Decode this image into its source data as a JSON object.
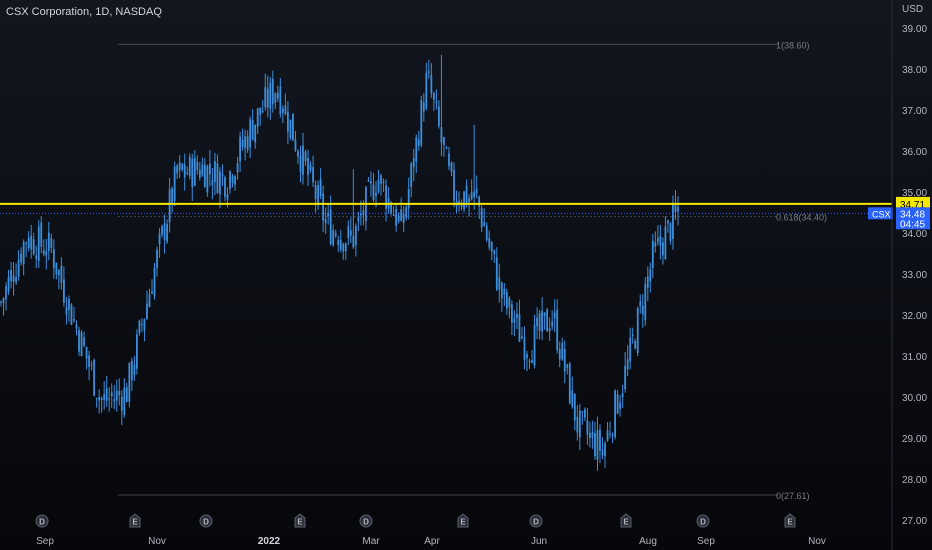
{
  "header": {
    "title": "CSX Corporation, 1D, NASDAQ"
  },
  "price_axis": {
    "unit": "USD",
    "ticks": [
      "39.00",
      "38.00",
      "37.00",
      "36.00",
      "35.00",
      "34.00",
      "33.00",
      "32.00",
      "31.00",
      "30.00",
      "29.00",
      "28.00",
      "27.00"
    ],
    "tick_values": [
      39,
      38,
      37,
      36,
      35,
      34,
      33,
      32,
      31,
      30,
      29,
      28,
      27
    ],
    "range": [
      27,
      39
    ]
  },
  "time_axis": {
    "labels": [
      {
        "text": "Sep",
        "bold": false
      },
      {
        "text": "Nov",
        "bold": false
      },
      {
        "text": "2022",
        "bold": true
      },
      {
        "text": "Mar",
        "bold": false
      },
      {
        "text": "Apr",
        "bold": false
      },
      {
        "text": "Jun",
        "bold": false
      },
      {
        "text": "Aug",
        "bold": false
      },
      {
        "text": "Sep",
        "bold": false
      },
      {
        "text": "Nov",
        "bold": false
      }
    ]
  },
  "event_markers": [
    "D",
    "E",
    "D",
    "E",
    "D",
    "E",
    "D",
    "E",
    "D",
    "D",
    "E"
  ],
  "fib_levels": [
    {
      "label": "1(38.60)",
      "value": 38.6
    },
    {
      "label": "0.618(34.40)",
      "value": 34.4
    },
    {
      "label": "0(27.61)",
      "value": 27.61
    }
  ],
  "horizontal_line": {
    "value": 34.71,
    "label": "34.71",
    "color": "#f5e800"
  },
  "price_tag": {
    "symbol": "CSX",
    "price": "34.48",
    "countdown": "04:45",
    "color": "#2962ff"
  },
  "colors": {
    "candle": "#3c8fdd",
    "accent": "#2962ff",
    "hline": "#f5e800"
  },
  "chart_data": {
    "type": "candlestick",
    "title": "CSX Corporation, 1D, NASDAQ",
    "ylabel": "USD",
    "ylim": [
      27,
      39
    ],
    "x": [
      "2021-08-01",
      "2021-08-15",
      "2021-09-01",
      "2021-09-15",
      "2021-10-01",
      "2021-10-15",
      "2021-10-25",
      "2021-11-01",
      "2021-11-15",
      "2021-12-01",
      "2021-12-15",
      "2022-01-01",
      "2022-01-15",
      "2022-02-01",
      "2022-02-15",
      "2022-03-01",
      "2022-03-15",
      "2022-04-01",
      "2022-04-15",
      "2022-05-01",
      "2022-05-15",
      "2022-06-01",
      "2022-06-15",
      "2022-07-01",
      "2022-07-15",
      "2022-08-01",
      "2022-08-15",
      "2022-08-22"
    ],
    "close": [
      32.3,
      33.9,
      33.6,
      31.7,
      29.9,
      30.1,
      32.8,
      35.4,
      35.6,
      35.3,
      36.6,
      37.6,
      35.8,
      34.2,
      33.8,
      35.4,
      34.1,
      37.8,
      35.0,
      34.8,
      32.4,
      31.2,
      32.0,
      29.3,
      28.7,
      30.8,
      33.4,
      34.48
    ],
    "series": [
      {
        "name": "CSX",
        "values": [
          32.3,
          33.9,
          33.6,
          31.7,
          29.9,
          30.1,
          32.8,
          35.4,
          35.6,
          35.3,
          36.6,
          37.6,
          35.8,
          34.2,
          33.8,
          35.4,
          34.1,
          37.8,
          35.0,
          34.8,
          32.4,
          31.2,
          32.0,
          29.3,
          28.7,
          30.8,
          33.4,
          34.48
        ]
      }
    ],
    "annotations": [
      "1(38.60)",
      "0.618(34.40)",
      "0(27.61)",
      "34.71"
    ],
    "grid": false
  }
}
